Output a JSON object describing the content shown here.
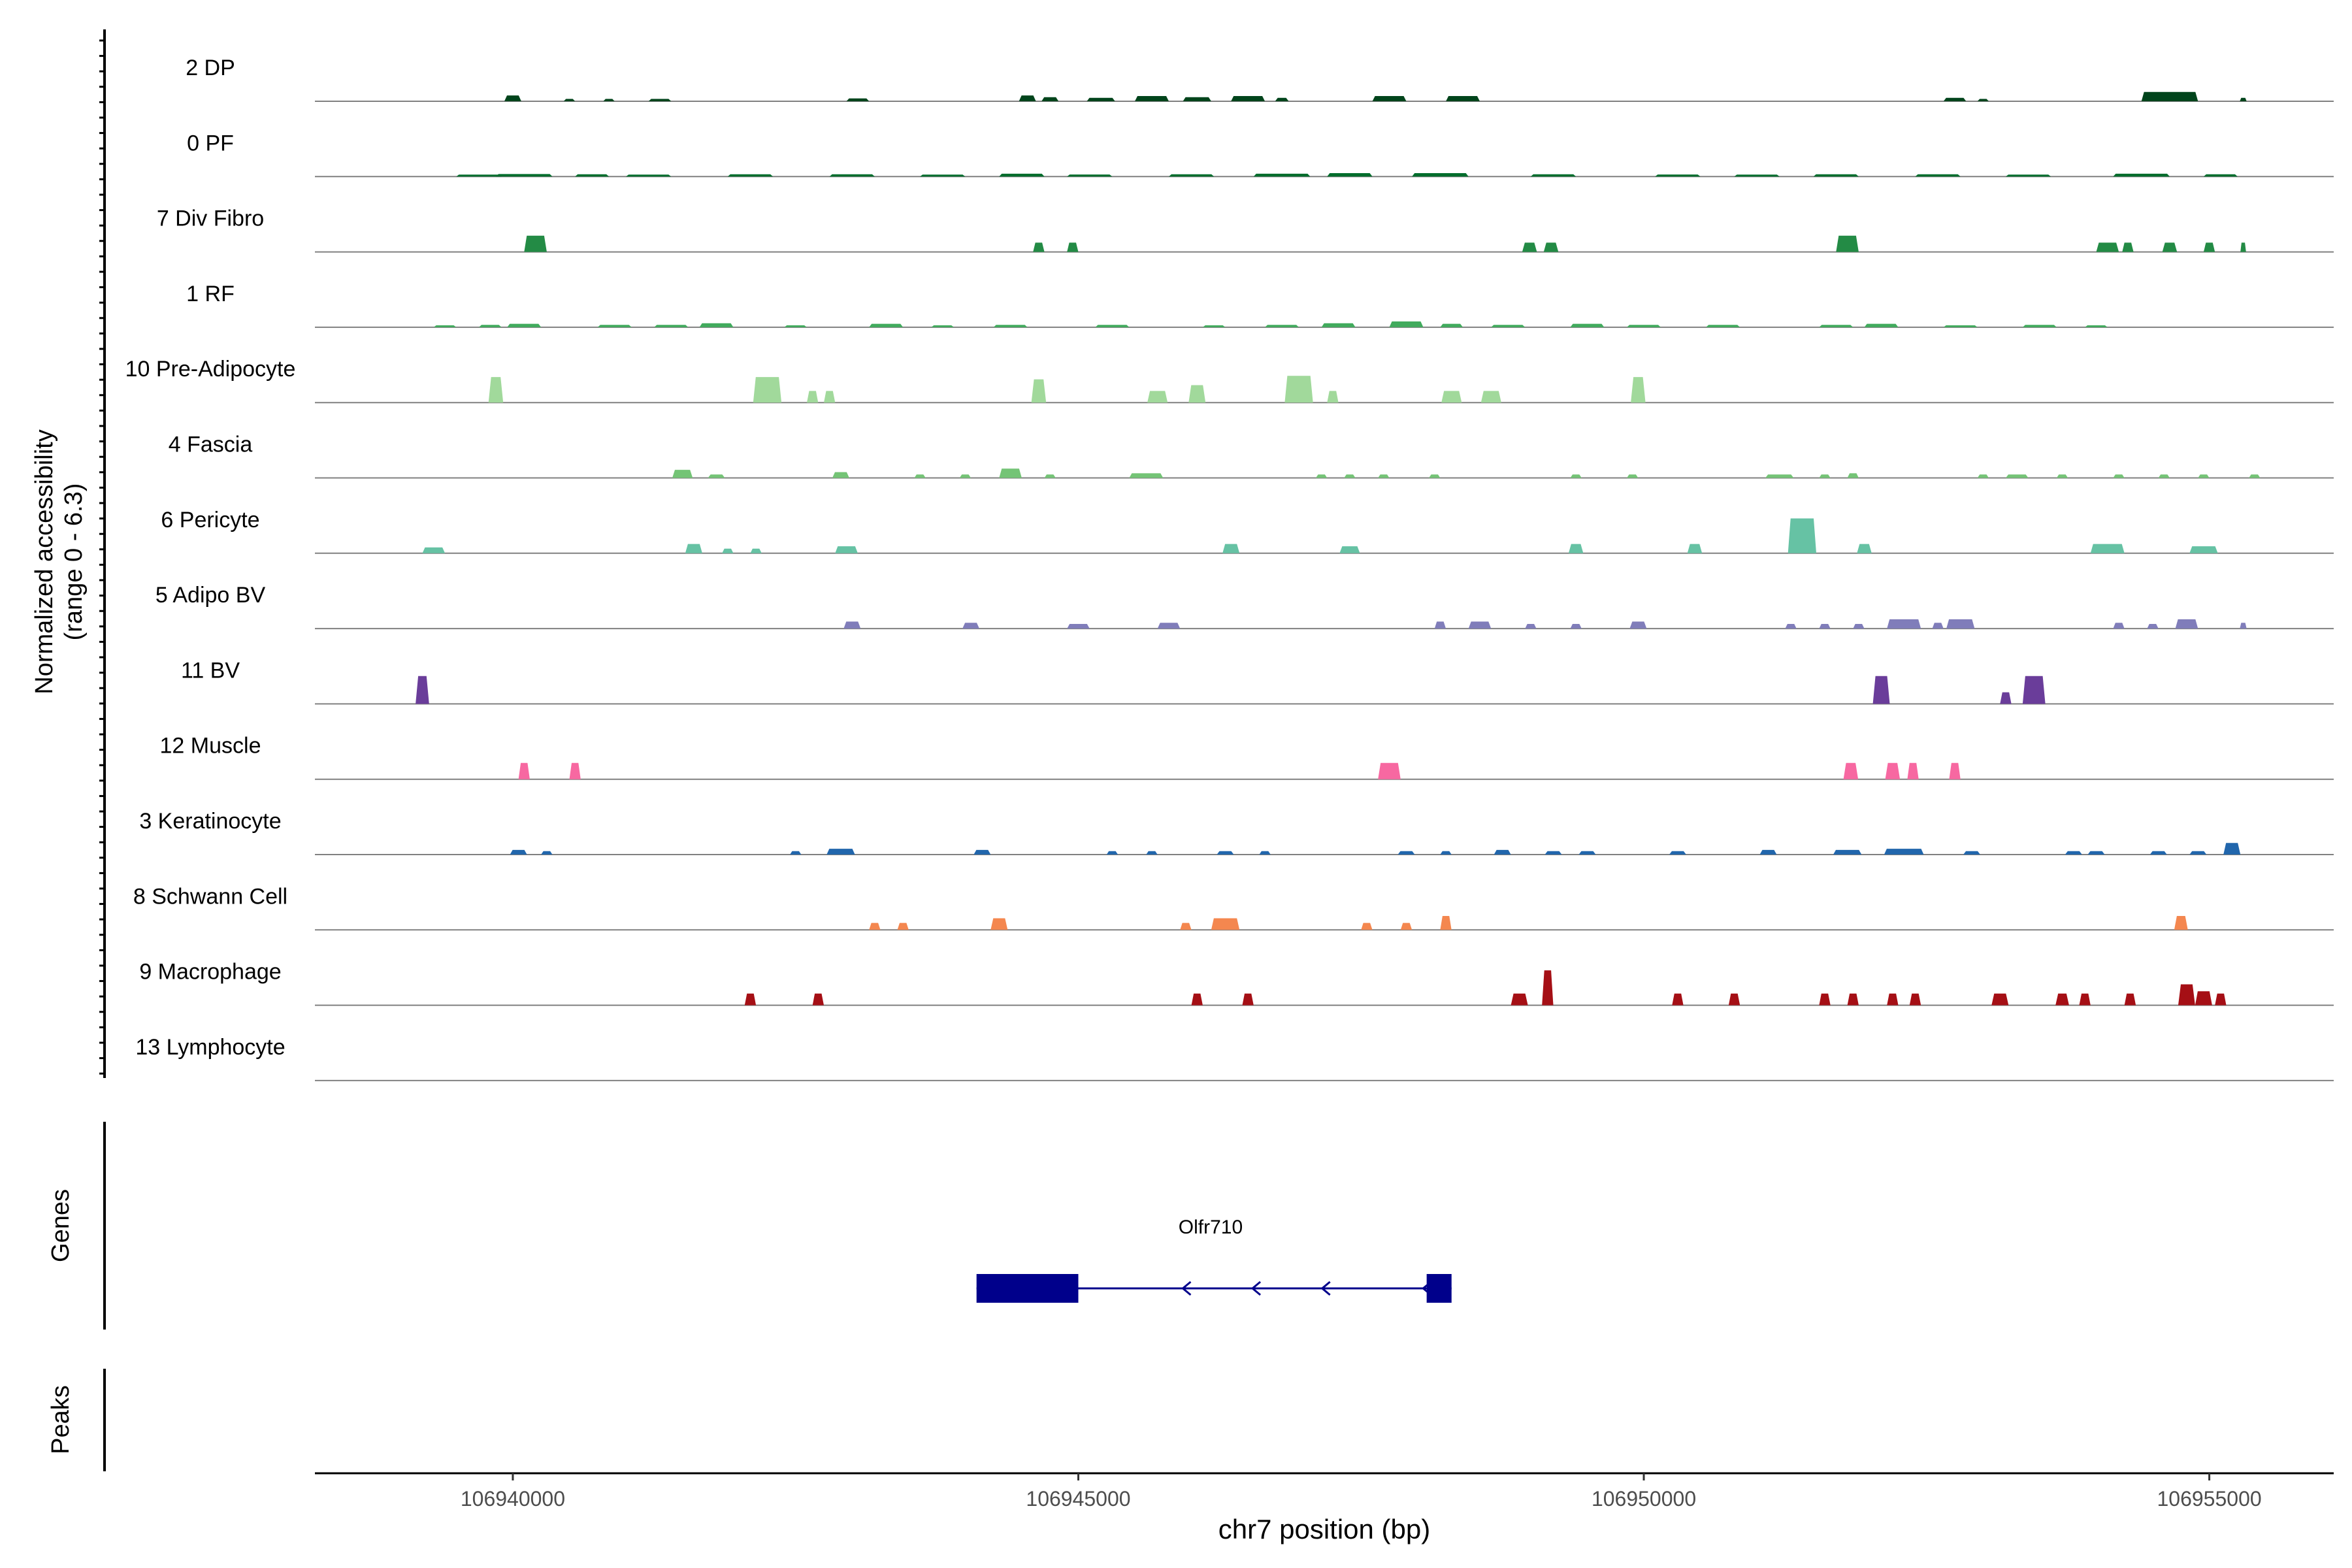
{
  "chart_data": {
    "type": "area",
    "title": "",
    "chromosome": "chr7",
    "xlabel": "chr7 position (bp)",
    "xlim": [
      106938250,
      106956100
    ],
    "xticks": [
      106940000,
      106945000,
      106950000,
      106955000
    ],
    "xtick_labels": [
      "106940000",
      "106945000",
      "106950000",
      "106955000"
    ],
    "ylabel_line1": "Normalized accessibility",
    "ylabel_line2": "(range 0 - 6.3)",
    "ylim": [
      0,
      6.3
    ],
    "genes_label": "Genes",
    "peaks_label": "Peaks",
    "series": [
      {
        "name": "2 DP",
        "color": "#00441b",
        "peaks": [
          [
            106940000,
            150,
            0.5
          ],
          [
            106940500,
            100,
            0.2
          ],
          [
            106940850,
            100,
            0.2
          ],
          [
            106941300,
            200,
            0.2
          ],
          [
            106943050,
            200,
            0.25
          ],
          [
            106944550,
            150,
            0.5
          ],
          [
            106944750,
            150,
            0.35
          ],
          [
            106945200,
            250,
            0.3
          ],
          [
            106945650,
            300,
            0.45
          ],
          [
            106946050,
            250,
            0.35
          ],
          [
            106946500,
            300,
            0.45
          ],
          [
            106946800,
            120,
            0.3
          ],
          [
            106947750,
            300,
            0.45
          ],
          [
            106948400,
            300,
            0.45
          ],
          [
            106952750,
            200,
            0.3
          ],
          [
            106953000,
            100,
            0.2
          ],
          [
            106954650,
            500,
            0.8
          ],
          [
            106955300,
            60,
            0.3
          ]
        ]
      },
      {
        "name": "0 PF",
        "color": "#006d2c",
        "peaks": [
          [
            106939700,
            400,
            0.15
          ],
          [
            106940100,
            500,
            0.22
          ],
          [
            106940700,
            300,
            0.2
          ],
          [
            106941200,
            400,
            0.15
          ],
          [
            106942100,
            400,
            0.2
          ],
          [
            106943000,
            400,
            0.2
          ],
          [
            106943800,
            400,
            0.15
          ],
          [
            106944500,
            400,
            0.25
          ],
          [
            106945100,
            400,
            0.18
          ],
          [
            106946000,
            400,
            0.2
          ],
          [
            106946800,
            500,
            0.25
          ],
          [
            106947400,
            400,
            0.3
          ],
          [
            106948200,
            500,
            0.3
          ],
          [
            106949200,
            400,
            0.2
          ],
          [
            106950300,
            400,
            0.18
          ],
          [
            106951000,
            400,
            0.15
          ],
          [
            106951700,
            400,
            0.2
          ],
          [
            106952600,
            400,
            0.2
          ],
          [
            106953400,
            400,
            0.15
          ],
          [
            106954400,
            500,
            0.25
          ],
          [
            106955100,
            300,
            0.2
          ]
        ]
      },
      {
        "name": "7 Div Fibro",
        "color": "#238b45",
        "peaks": [
          [
            106940200,
            200,
            1.4
          ],
          [
            106944650,
            100,
            0.8
          ],
          [
            106944950,
            100,
            0.8
          ],
          [
            106948990,
            130,
            0.8
          ],
          [
            106949180,
            130,
            0.8
          ],
          [
            106951800,
            200,
            1.4
          ],
          [
            106954100,
            200,
            0.8
          ],
          [
            106954280,
            100,
            0.8
          ],
          [
            106954650,
            130,
            0.8
          ],
          [
            106955000,
            100,
            0.8
          ],
          [
            106955300,
            50,
            0.8
          ]
        ]
      },
      {
        "name": "1 RF",
        "color": "#41ab5d",
        "peaks": [
          [
            106939400,
            200,
            0.15
          ],
          [
            106939800,
            200,
            0.2
          ],
          [
            106940100,
            300,
            0.3
          ],
          [
            106940900,
            300,
            0.2
          ],
          [
            106941400,
            300,
            0.2
          ],
          [
            106941800,
            300,
            0.35
          ],
          [
            106942500,
            200,
            0.15
          ],
          [
            106943300,
            300,
            0.3
          ],
          [
            106943800,
            200,
            0.15
          ],
          [
            106944400,
            300,
            0.2
          ],
          [
            106945300,
            300,
            0.2
          ],
          [
            106946200,
            200,
            0.15
          ],
          [
            106946800,
            300,
            0.2
          ],
          [
            106947300,
            300,
            0.35
          ],
          [
            106947900,
            300,
            0.5
          ],
          [
            106948300,
            200,
            0.3
          ],
          [
            106948800,
            300,
            0.2
          ],
          [
            106949500,
            300,
            0.3
          ],
          [
            106950000,
            300,
            0.2
          ],
          [
            106950700,
            300,
            0.2
          ],
          [
            106951700,
            300,
            0.2
          ],
          [
            106952100,
            300,
            0.3
          ],
          [
            106952800,
            300,
            0.15
          ],
          [
            106953500,
            300,
            0.2
          ],
          [
            106954000,
            200,
            0.15
          ]
        ]
      },
      {
        "name": "10 Pre-Adipocyte",
        "color": "#a1d99b",
        "peaks": [
          [
            106939850,
            130,
            2.2
          ],
          [
            106942250,
            250,
            2.2
          ],
          [
            106942650,
            100,
            1.0
          ],
          [
            106942800,
            100,
            1.0
          ],
          [
            106944650,
            130,
            2.0
          ],
          [
            106945700,
            180,
            1.0
          ],
          [
            106946050,
            150,
            1.5
          ],
          [
            106946950,
            250,
            2.3
          ],
          [
            106947250,
            100,
            1.0
          ],
          [
            106948300,
            180,
            1.0
          ],
          [
            106948650,
            180,
            1.0
          ],
          [
            106949950,
            130,
            2.2
          ]
        ]
      },
      {
        "name": "4 Fascia",
        "color": "#74c476",
        "peaks": [
          [
            106941500,
            180,
            0.7
          ],
          [
            106941800,
            150,
            0.3
          ],
          [
            106942900,
            150,
            0.5
          ],
          [
            106943600,
            100,
            0.3
          ],
          [
            106944000,
            100,
            0.3
          ],
          [
            106944400,
            200,
            0.8
          ],
          [
            106944750,
            100,
            0.3
          ],
          [
            106945600,
            300,
            0.4
          ],
          [
            106947150,
            100,
            0.3
          ],
          [
            106947400,
            100,
            0.3
          ],
          [
            106947700,
            100,
            0.3
          ],
          [
            106948150,
            100,
            0.3
          ],
          [
            106949400,
            100,
            0.3
          ],
          [
            106949900,
            100,
            0.3
          ],
          [
            106951200,
            250,
            0.3
          ],
          [
            106951600,
            100,
            0.3
          ],
          [
            106951850,
            100,
            0.4
          ],
          [
            106953000,
            100,
            0.3
          ],
          [
            106953300,
            200,
            0.3
          ],
          [
            106953700,
            100,
            0.3
          ],
          [
            106954200,
            100,
            0.3
          ],
          [
            106954600,
            100,
            0.3
          ],
          [
            106954950,
            100,
            0.3
          ],
          [
            106955400,
            100,
            0.3
          ]
        ]
      },
      {
        "name": "6 Pericyte",
        "color": "#66c2a4",
        "peaks": [
          [
            106939300,
            200,
            0.5
          ],
          [
            106941600,
            150,
            0.8
          ],
          [
            106941900,
            100,
            0.4
          ],
          [
            106942150,
            100,
            0.4
          ],
          [
            106942950,
            200,
            0.6
          ],
          [
            106946350,
            150,
            0.8
          ],
          [
            106947400,
            180,
            0.6
          ],
          [
            106949400,
            130,
            0.8
          ],
          [
            106950450,
            130,
            0.8
          ],
          [
            106951400,
            250,
            3.0
          ],
          [
            106951950,
            130,
            0.8
          ],
          [
            106954100,
            300,
            0.8
          ],
          [
            106954950,
            250,
            0.6
          ]
        ]
      },
      {
        "name": "5 Adipo BV",
        "color": "#807dba",
        "peaks": [
          [
            106943000,
            150,
            0.6
          ],
          [
            106944050,
            150,
            0.5
          ],
          [
            106945000,
            200,
            0.4
          ],
          [
            106945800,
            200,
            0.5
          ],
          [
            106948200,
            100,
            0.6
          ],
          [
            106948550,
            200,
            0.6
          ],
          [
            106949000,
            100,
            0.4
          ],
          [
            106949400,
            100,
            0.4
          ],
          [
            106949950,
            150,
            0.6
          ],
          [
            106951300,
            100,
            0.4
          ],
          [
            106951600,
            100,
            0.4
          ],
          [
            106951900,
            100,
            0.4
          ],
          [
            106952300,
            300,
            0.8
          ],
          [
            106952600,
            100,
            0.5
          ],
          [
            106952800,
            250,
            0.8
          ],
          [
            106954200,
            100,
            0.5
          ],
          [
            106954500,
            100,
            0.4
          ],
          [
            106954800,
            200,
            0.8
          ],
          [
            106955300,
            60,
            0.5
          ]
        ]
      },
      {
        "name": "11 BV",
        "color": "#6a3d9a",
        "peaks": [
          [
            106939200,
            120,
            2.4
          ],
          [
            106952100,
            150,
            2.4
          ],
          [
            106953200,
            100,
            1.0
          ],
          [
            106953450,
            200,
            2.4
          ]
        ]
      },
      {
        "name": "12 Muscle",
        "color": "#f768a1",
        "peaks": [
          [
            106940100,
            100,
            1.4
          ],
          [
            106940550,
            100,
            1.4
          ],
          [
            106947750,
            200,
            1.4
          ],
          [
            106951830,
            130,
            1.4
          ],
          [
            106952200,
            130,
            1.4
          ],
          [
            106952380,
            100,
            1.4
          ],
          [
            106952750,
            100,
            1.4
          ]
        ]
      },
      {
        "name": "3 Keratinocyte",
        "color": "#2166ac",
        "peaks": [
          [
            106940050,
            150,
            0.4
          ],
          [
            106940300,
            100,
            0.3
          ],
          [
            106942500,
            100,
            0.3
          ],
          [
            106942900,
            250,
            0.5
          ],
          [
            106944150,
            150,
            0.4
          ],
          [
            106945300,
            100,
            0.3
          ],
          [
            106945650,
            100,
            0.3
          ],
          [
            106946300,
            150,
            0.3
          ],
          [
            106946650,
            100,
            0.3
          ],
          [
            106947900,
            150,
            0.3
          ],
          [
            106948250,
            100,
            0.3
          ],
          [
            106948750,
            150,
            0.4
          ],
          [
            106949200,
            150,
            0.3
          ],
          [
            106949500,
            150,
            0.3
          ],
          [
            106950300,
            150,
            0.3
          ],
          [
            106951100,
            150,
            0.4
          ],
          [
            106951800,
            250,
            0.4
          ],
          [
            106952300,
            350,
            0.5
          ],
          [
            106952900,
            150,
            0.3
          ],
          [
            106953800,
            150,
            0.3
          ],
          [
            106954000,
            150,
            0.3
          ],
          [
            106954550,
            150,
            0.3
          ],
          [
            106954900,
            150,
            0.3
          ],
          [
            106955200,
            150,
            1.0
          ]
        ]
      },
      {
        "name": "8 Schwann Cell",
        "color": "#f4874f",
        "peaks": [
          [
            106943200,
            100,
            0.6
          ],
          [
            106943450,
            100,
            0.6
          ],
          [
            106944300,
            150,
            1.0
          ],
          [
            106945950,
            100,
            0.6
          ],
          [
            106946300,
            250,
            1.0
          ],
          [
            106947550,
            100,
            0.6
          ],
          [
            106947900,
            100,
            0.6
          ],
          [
            106948250,
            100,
            1.2
          ],
          [
            106954750,
            120,
            1.2
          ]
        ]
      },
      {
        "name": "9 Macrophage",
        "color": "#a50f15",
        "peaks": [
          [
            106942100,
            100,
            1.0
          ],
          [
            106942700,
            100,
            1.0
          ],
          [
            106946050,
            100,
            1.0
          ],
          [
            106946500,
            100,
            1.0
          ],
          [
            106948900,
            150,
            1.0
          ],
          [
            106949150,
            100,
            3.0
          ],
          [
            106950300,
            100,
            1.0
          ],
          [
            106950800,
            100,
            1.0
          ],
          [
            106951600,
            100,
            1.0
          ],
          [
            106951850,
            100,
            1.0
          ],
          [
            106952200,
            100,
            1.0
          ],
          [
            106952400,
            100,
            1.0
          ],
          [
            106953150,
            150,
            1.0
          ],
          [
            106953700,
            120,
            1.0
          ],
          [
            106953900,
            100,
            1.0
          ],
          [
            106954300,
            100,
            1.0
          ],
          [
            106954800,
            150,
            1.8
          ],
          [
            106954950,
            150,
            1.2
          ],
          [
            106955100,
            100,
            1.0
          ]
        ]
      },
      {
        "name": "13 Lymphocyte",
        "color": "#333333",
        "peaks": []
      }
    ],
    "gene": {
      "name": "Olfr710",
      "strand": "-",
      "start": 106944100,
      "end": 106948300,
      "exons": [
        [
          106944100,
          106945000
        ],
        [
          106948080,
          106948300
        ]
      ],
      "color": "#00008b"
    }
  }
}
